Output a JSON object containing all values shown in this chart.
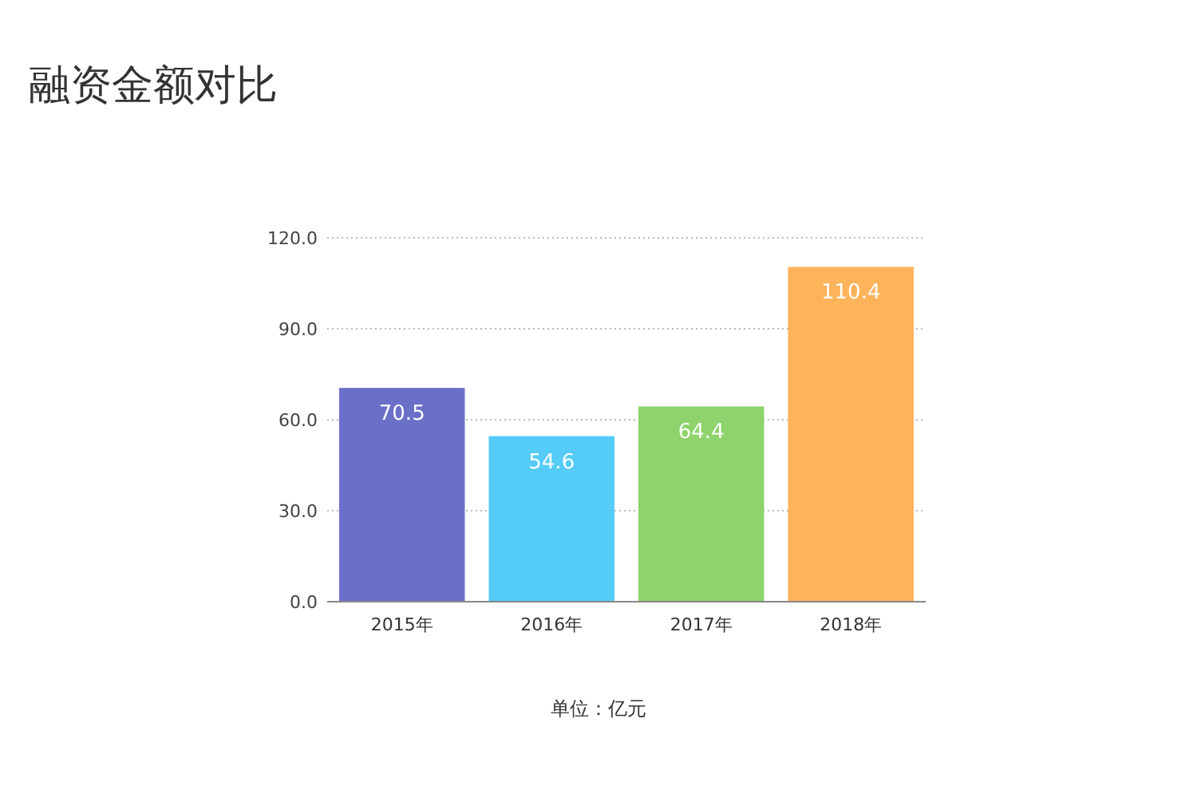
{
  "chart_data": {
    "type": "bar",
    "title": "融资金额对比",
    "categories": [
      "2015年",
      "2016年",
      "2017年",
      "2018年"
    ],
    "values": [
      70.5,
      54.6,
      64.4,
      110.4
    ],
    "colors": [
      "#6a70c8",
      "#55cbf8",
      "#8ed36b",
      "#ffb35a"
    ],
    "value_labels": [
      "70.5",
      "54.6",
      "64.4",
      "110.4"
    ],
    "ylim": [
      0,
      120
    ],
    "yticks": [
      {
        "value": 0,
        "label": "0.0"
      },
      {
        "value": 30,
        "label": "30.0"
      },
      {
        "value": 60,
        "label": "60.0"
      },
      {
        "value": 90,
        "label": "90.0"
      },
      {
        "value": 120,
        "label": "120.0"
      }
    ],
    "grid": "y",
    "annotations": [
      "单位：亿元"
    ]
  }
}
